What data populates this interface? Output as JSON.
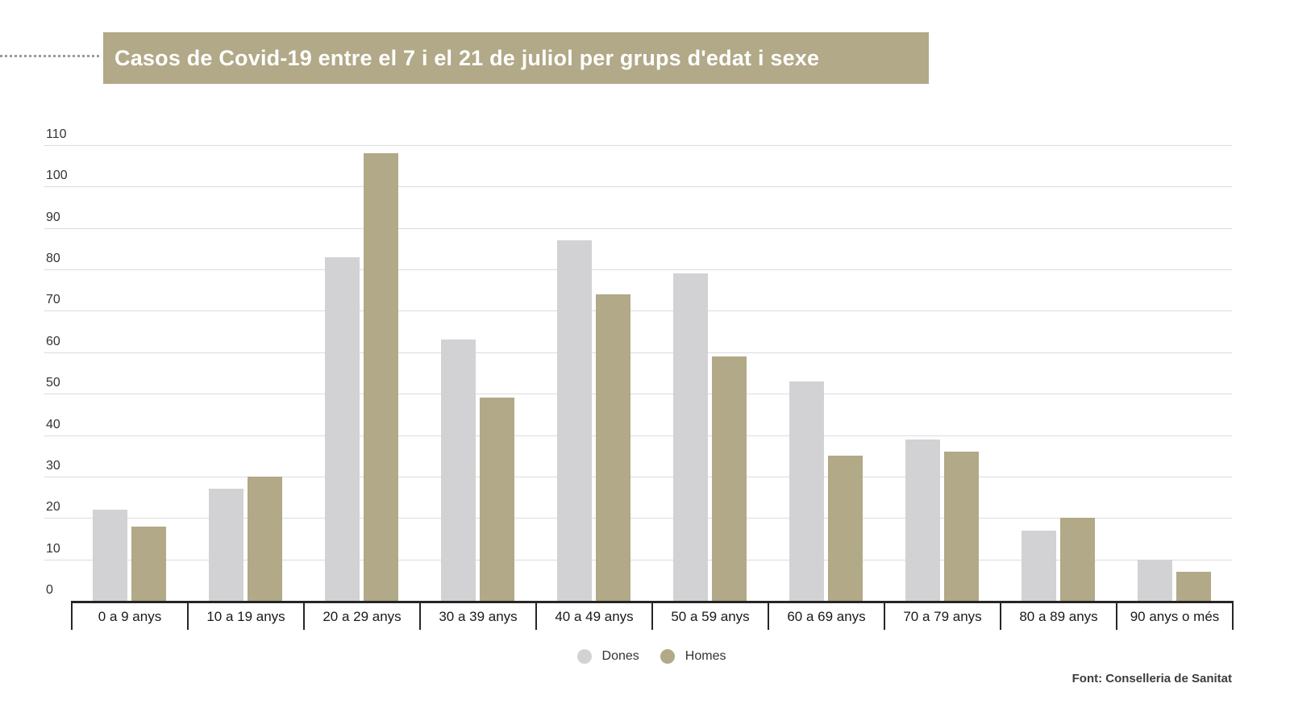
{
  "title": {
    "text": "Casos de Covid-19 entre el 7 i el 21 de juliol per grups d'edat i sexe",
    "background_color": "#b1a987",
    "text_color": "#ffffff"
  },
  "source": {
    "label": "Font: Conselleria de Sanitat"
  },
  "colors": {
    "dones": "#d2d2d4",
    "homes": "#b1a987",
    "gridline": "#dcdcdc",
    "axis": "#262626"
  },
  "chart_data": {
    "type": "bar",
    "title": "Casos de Covid-19 entre el 7 i el 21 de juliol per grups d'edat i sexe",
    "xlabel": "",
    "ylabel": "",
    "categories": [
      "0 a 9 anys",
      "10 a 19 anys",
      "20 a 29 anys",
      "30 a 39 anys",
      "40 a 49 anys",
      "50 a 59 anys",
      "60 a 69 anys",
      "70 a 79 anys",
      "80 a 89 anys",
      "90 anys o més"
    ],
    "series": [
      {
        "name": "Dones",
        "color": "#d2d2d4",
        "values": [
          22,
          27,
          83,
          63,
          87,
          79,
          53,
          39,
          17,
          10
        ]
      },
      {
        "name": "Homes",
        "color": "#b1a987",
        "values": [
          18,
          30,
          108,
          49,
          74,
          59,
          35,
          36,
          20,
          7
        ]
      }
    ],
    "ylim": [
      0,
      110
    ],
    "yticks": [
      0,
      10,
      20,
      30,
      40,
      50,
      60,
      70,
      80,
      90,
      100,
      110
    ],
    "grid": true,
    "legend_position": "bottom"
  }
}
